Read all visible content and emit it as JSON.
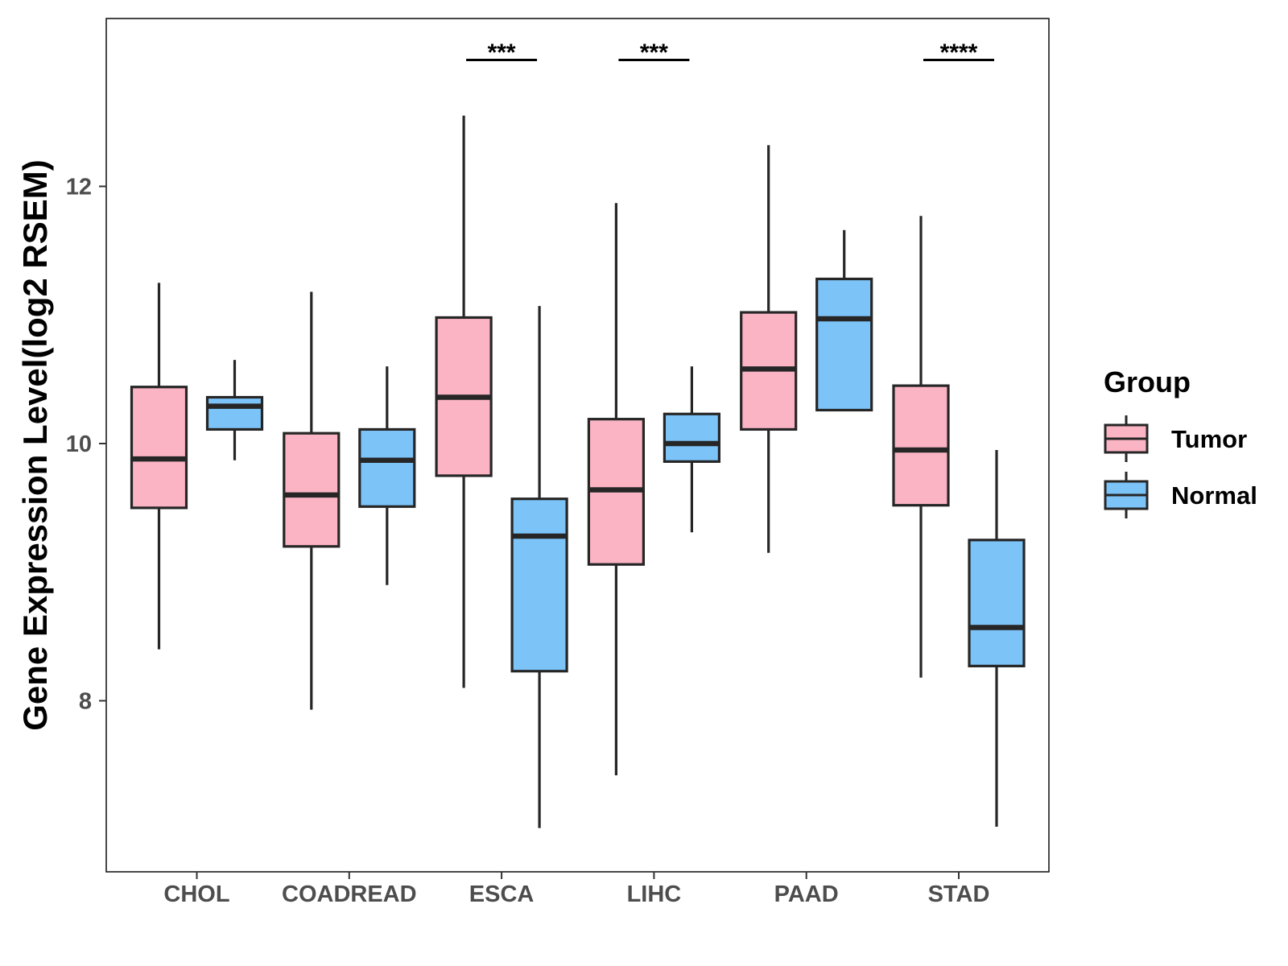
{
  "chart_data": {
    "type": "boxplot",
    "title": "",
    "xlabel": "",
    "ylabel": "Gene Expression Level(log2 RSEM)",
    "ylim": [
      6.7,
      13.35
    ],
    "yticks": [
      8,
      10,
      12
    ],
    "categories": [
      "CHOL",
      "COADREAD",
      "ESCA",
      "LIHC",
      "PAAD",
      "STAD"
    ],
    "legend": {
      "title": "Group",
      "position": "right",
      "items": [
        {
          "label": "Tumor",
          "color": "#fbb4c4"
        },
        {
          "label": "Normal",
          "color": "#7cc3f8"
        }
      ]
    },
    "series": [
      {
        "name": "Tumor",
        "color": "#fbb4c4",
        "boxes": [
          {
            "category": "CHOL",
            "min": 8.4,
            "q1": 9.5,
            "median": 9.88,
            "q3": 10.44,
            "max": 11.25
          },
          {
            "category": "COADREAD",
            "min": 7.93,
            "q1": 9.2,
            "median": 9.6,
            "q3": 10.08,
            "max": 11.18
          },
          {
            "category": "ESCA",
            "min": 8.1,
            "q1": 9.75,
            "median": 10.36,
            "q3": 10.98,
            "max": 12.55
          },
          {
            "category": "LIHC",
            "min": 7.42,
            "q1": 9.06,
            "median": 9.64,
            "q3": 10.19,
            "max": 11.87
          },
          {
            "category": "PAAD",
            "min": 9.15,
            "q1": 10.11,
            "median": 10.58,
            "q3": 11.02,
            "max": 12.32
          },
          {
            "category": "STAD",
            "min": 8.18,
            "q1": 9.52,
            "median": 9.95,
            "q3": 10.45,
            "max": 11.77
          }
        ]
      },
      {
        "name": "Normal",
        "color": "#7cc3f8",
        "boxes": [
          {
            "category": "CHOL",
            "min": 9.87,
            "q1": 10.11,
            "median": 10.29,
            "q3": 10.36,
            "max": 10.65
          },
          {
            "category": "COADREAD",
            "min": 8.9,
            "q1": 9.51,
            "median": 9.87,
            "q3": 10.11,
            "max": 10.6
          },
          {
            "category": "ESCA",
            "min": 7.01,
            "q1": 8.23,
            "median": 9.28,
            "q3": 9.57,
            "max": 11.07
          },
          {
            "category": "LIHC",
            "min": 9.31,
            "q1": 9.86,
            "median": 10.0,
            "q3": 10.23,
            "max": 10.6
          },
          {
            "category": "PAAD",
            "min": 10.26,
            "q1": 10.26,
            "median": 10.97,
            "q3": 11.28,
            "max": 11.66
          },
          {
            "category": "STAD",
            "min": 7.02,
            "q1": 8.27,
            "median": 8.57,
            "q3": 9.25,
            "max": 9.95
          }
        ]
      }
    ],
    "annotations": [
      {
        "category": "ESCA",
        "label": "***"
      },
      {
        "category": "LIHC",
        "label": "***"
      },
      {
        "category": "STAD",
        "label": "****"
      }
    ]
  }
}
